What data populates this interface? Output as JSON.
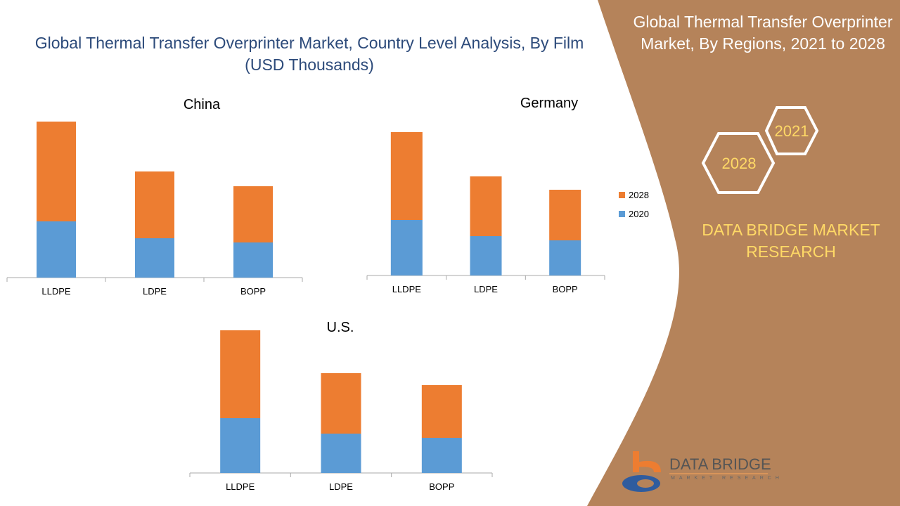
{
  "title": "Global Thermal Transfer Overprinter Market, Country Level Analysis, By Film (USD Thousands)",
  "side_panel": {
    "title": "Global Thermal Transfer Overprinter Market, By Regions, 2021 to 2028",
    "hex_labels": [
      "2021",
      "2028"
    ],
    "brand": "DATA BRIDGE MARKET RESEARCH",
    "logo_text": "DATA BRIDGE",
    "logo_subtext": "MARKET RESEARCH"
  },
  "colors": {
    "2020": "#5b9bd5",
    "2028": "#ed7d31",
    "panel": "#b5835a",
    "brand": "#ffd966"
  },
  "chart_data": [
    {
      "type": "bar",
      "stacked": true,
      "title": "China",
      "categories": [
        "LLDPE",
        "LDPE",
        "BOPP"
      ],
      "series": [
        {
          "name": "2020",
          "values": [
            80,
            56,
            50
          ]
        },
        {
          "name": "2028",
          "values": [
            142,
            95,
            80
          ]
        }
      ],
      "ylim": [
        0,
        230
      ]
    },
    {
      "type": "bar",
      "stacked": true,
      "title": "Germany",
      "categories": [
        "LLDPE",
        "LDPE",
        "BOPP"
      ],
      "series": [
        {
          "name": "2020",
          "values": [
            79,
            56,
            50
          ]
        },
        {
          "name": "2028",
          "values": [
            125,
            85,
            72
          ]
        }
      ],
      "ylim": [
        0,
        230
      ],
      "legend": {
        "entries": [
          "2028",
          "2020"
        ],
        "placement": "right"
      }
    },
    {
      "type": "bar",
      "stacked": true,
      "title": "U.S.",
      "categories": [
        "LLDPE",
        "LDPE",
        "BOPP"
      ],
      "series": [
        {
          "name": "2020",
          "values": [
            78,
            56,
            50
          ]
        },
        {
          "name": "2028",
          "values": [
            125,
            86,
            75
          ]
        }
      ],
      "ylim": [
        0,
        230
      ]
    }
  ]
}
